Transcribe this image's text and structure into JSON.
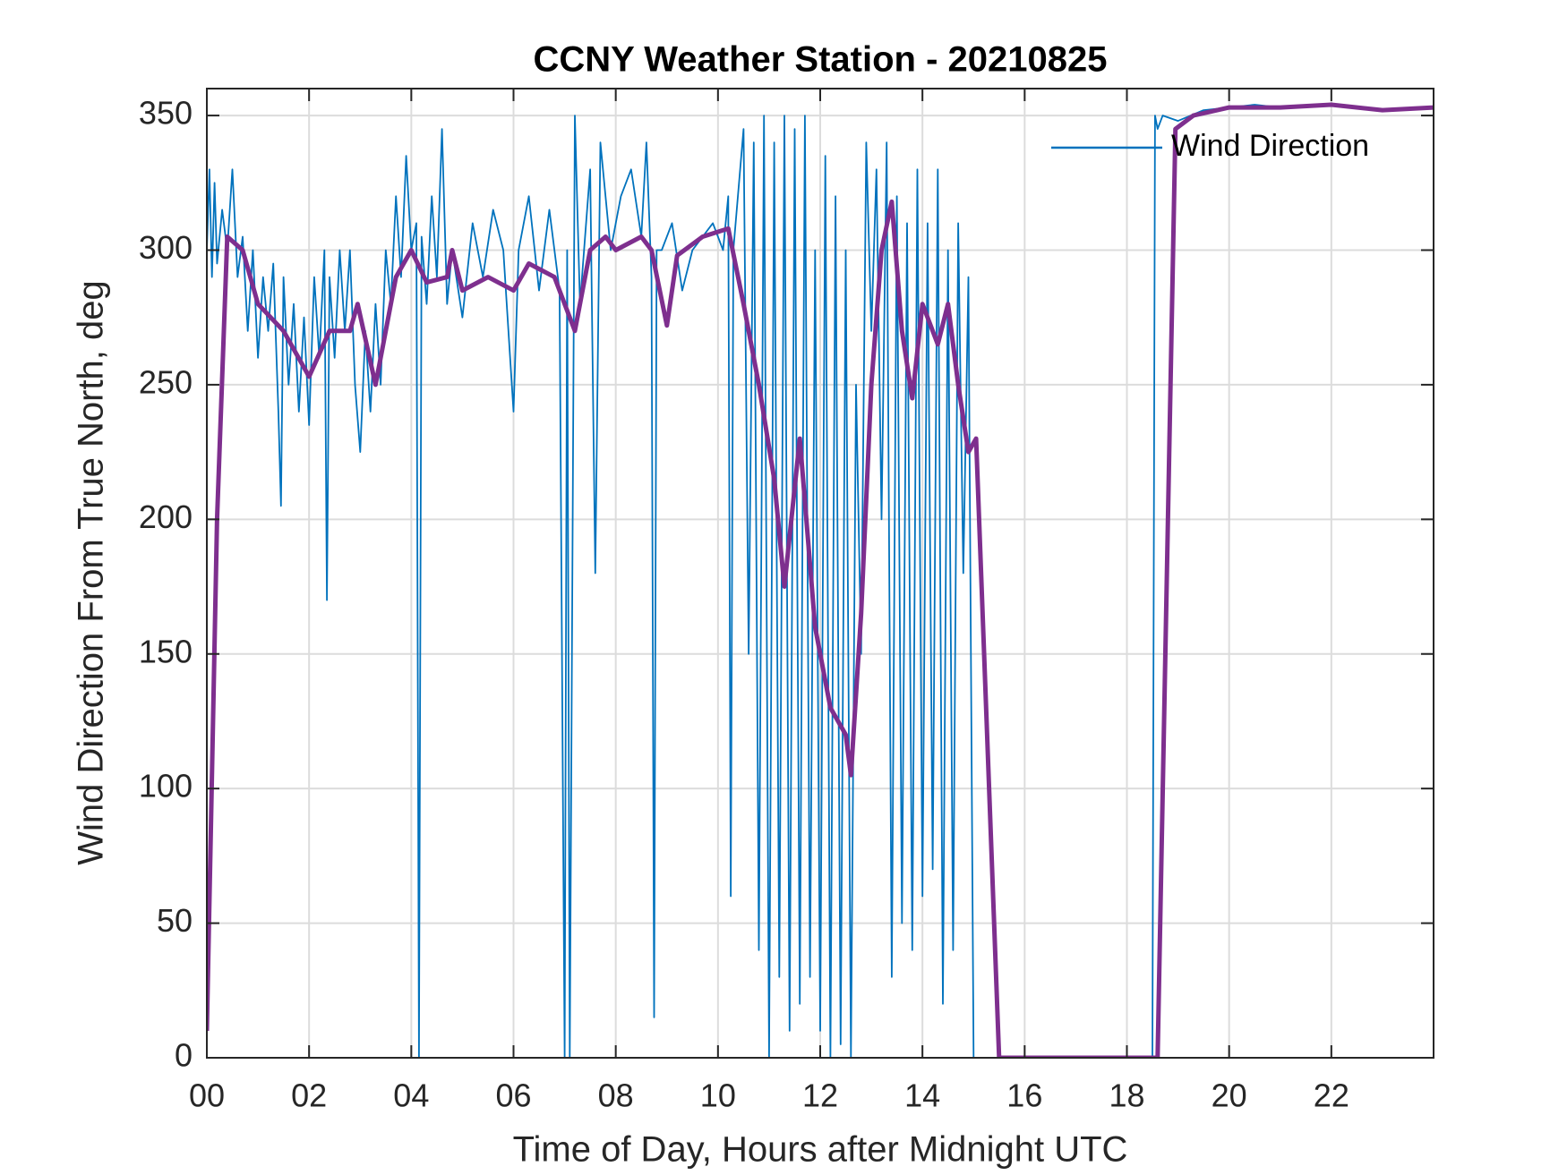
{
  "chart_data": {
    "type": "line",
    "title": "CCNY Weather Station - 20210825",
    "xlabel": "Time of Day, Hours after Midnight UTC",
    "ylabel": "Wind Direction From True North, deg",
    "xlim": [
      0,
      24
    ],
    "ylim": [
      0,
      360
    ],
    "xticks": [
      {
        "value": 0,
        "label": "00"
      },
      {
        "value": 2,
        "label": "02"
      },
      {
        "value": 4,
        "label": "04"
      },
      {
        "value": 6,
        "label": "06"
      },
      {
        "value": 8,
        "label": "08"
      },
      10,
      12,
      14,
      16,
      18,
      20,
      22
    ],
    "yticks": [
      0,
      50,
      100,
      150,
      200,
      250,
      300,
      350
    ],
    "grid": true,
    "legend": "northeast",
    "series": [
      {
        "name": "Wind Direction",
        "color": "#0072bd",
        "x": [
          0.0,
          0.05,
          0.1,
          0.15,
          0.2,
          0.3,
          0.4,
          0.5,
          0.6,
          0.7,
          0.8,
          0.9,
          1.0,
          1.1,
          1.2,
          1.3,
          1.4,
          1.45,
          1.5,
          1.6,
          1.7,
          1.8,
          1.9,
          2.0,
          2.1,
          2.2,
          2.3,
          2.35,
          2.4,
          2.5,
          2.6,
          2.7,
          2.8,
          2.9,
          3.0,
          3.1,
          3.2,
          3.3,
          3.4,
          3.5,
          3.6,
          3.7,
          3.8,
          3.9,
          4.0,
          4.1,
          4.15,
          4.2,
          4.3,
          4.4,
          4.5,
          4.6,
          4.7,
          4.8,
          5.0,
          5.2,
          5.4,
          5.6,
          5.8,
          6.0,
          6.1,
          6.3,
          6.5,
          6.7,
          6.9,
          7.0,
          7.05,
          7.1,
          7.2,
          7.3,
          7.5,
          7.6,
          7.7,
          7.9,
          8.1,
          8.3,
          8.5,
          8.6,
          8.7,
          8.75,
          8.8,
          8.9,
          9.1,
          9.3,
          9.5,
          9.7,
          9.9,
          10.1,
          10.2,
          10.25,
          10.3,
          10.5,
          10.6,
          10.7,
          10.8,
          10.9,
          11.0,
          11.1,
          11.2,
          11.3,
          11.4,
          11.5,
          11.6,
          11.7,
          11.8,
          11.9,
          12.0,
          12.1,
          12.2,
          12.3,
          12.4,
          12.5,
          12.6,
          12.7,
          12.8,
          12.9,
          13.0,
          13.1,
          13.2,
          13.3,
          13.4,
          13.5,
          13.6,
          13.7,
          13.8,
          13.9,
          14.0,
          14.1,
          14.2,
          14.3,
          14.4,
          14.5,
          14.6,
          14.7,
          14.8,
          14.9,
          15.0,
          15.1,
          18.5,
          18.55,
          18.6,
          18.7,
          19.0,
          19.5,
          20.0,
          20.5,
          21.0,
          22.0,
          22.5,
          23.0,
          24.0
        ],
        "values": [
          300,
          330,
          290,
          325,
          295,
          315,
          300,
          330,
          290,
          305,
          270,
          300,
          260,
          290,
          270,
          295,
          240,
          205,
          290,
          250,
          280,
          240,
          275,
          235,
          290,
          260,
          300,
          170,
          290,
          260,
          300,
          270,
          300,
          250,
          225,
          270,
          240,
          280,
          250,
          300,
          280,
          320,
          290,
          335,
          300,
          310,
          0,
          305,
          280,
          320,
          290,
          345,
          280,
          300,
          275,
          310,
          290,
          315,
          300,
          240,
          300,
          320,
          285,
          315,
          285,
          0,
          300,
          0,
          350,
          280,
          330,
          180,
          340,
          300,
          320,
          330,
          305,
          340,
          290,
          15,
          300,
          300,
          310,
          285,
          300,
          305,
          310,
          300,
          320,
          60,
          300,
          345,
          150,
          340,
          40,
          350,
          0,
          340,
          30,
          350,
          10,
          345,
          20,
          350,
          30,
          300,
          10,
          335,
          0,
          320,
          5,
          300,
          0,
          250,
          150,
          340,
          270,
          330,
          200,
          340,
          30,
          320,
          50,
          310,
          40,
          330,
          60,
          310,
          70,
          330,
          20,
          300,
          40,
          310,
          180,
          290,
          0,
          0,
          0,
          350,
          345,
          350,
          348,
          352,
          353,
          354,
          353,
          354,
          353,
          352,
          353
        ]
      },
      {
        "color": "#7e2f8e",
        "x": [
          0,
          0.2,
          0.4,
          0.7,
          1.0,
          1.5,
          2.0,
          2.4,
          2.8,
          2.95,
          3.3,
          3.7,
          4.0,
          4.3,
          4.7,
          4.8,
          5.0,
          5.5,
          6.0,
          6.3,
          6.8,
          7.0,
          7.2,
          7.5,
          7.8,
          8.0,
          8.5,
          8.7,
          9.0,
          9.2,
          9.7,
          10.2,
          10.5,
          10.8,
          11.1,
          11.3,
          11.6,
          11.9,
          12.2,
          12.5,
          12.6,
          12.8,
          13.0,
          13.2,
          13.4,
          13.6,
          13.8,
          14.0,
          14.3,
          14.5,
          14.7,
          14.9,
          15.05,
          15.5,
          18.6,
          18.95,
          19.3,
          20.0,
          21.0,
          22.0,
          23.0,
          24.0
        ],
        "values": [
          10,
          200,
          305,
          300,
          280,
          270,
          253,
          270,
          270,
          280,
          250,
          290,
          300,
          288,
          290,
          300,
          285,
          290,
          285,
          295,
          290,
          280,
          270,
          300,
          305,
          300,
          305,
          300,
          272,
          298,
          305,
          308,
          280,
          250,
          215,
          175,
          230,
          160,
          130,
          120,
          105,
          165,
          250,
          300,
          318,
          270,
          245,
          280,
          265,
          280,
          250,
          225,
          230,
          0,
          0,
          345,
          350,
          353,
          353,
          354,
          352,
          353
        ]
      }
    ]
  }
}
